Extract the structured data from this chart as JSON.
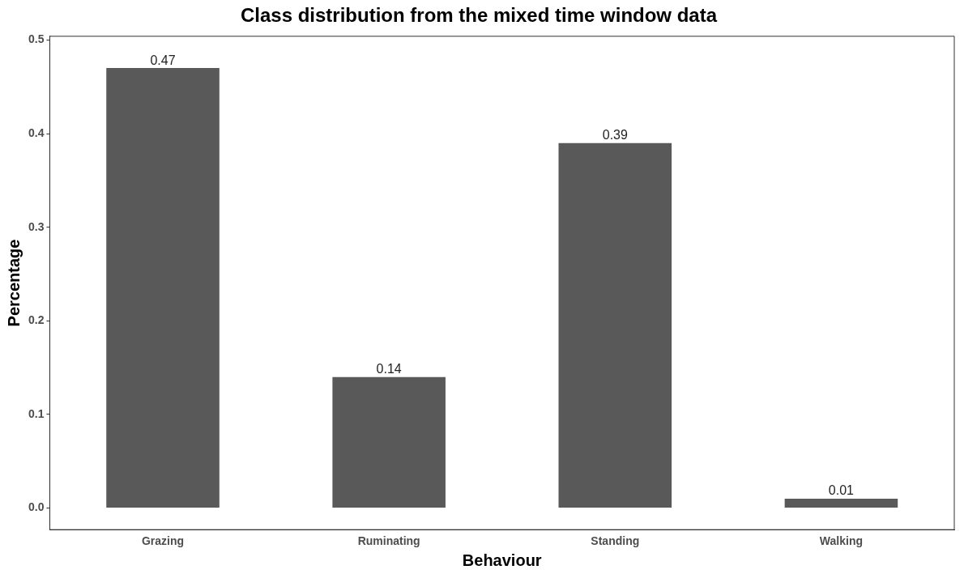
{
  "chart_data": {
    "type": "bar",
    "title": "Class distribution from the mixed time window data",
    "xlabel": "Behaviour",
    "ylabel": "Percentage",
    "categories": [
      "Grazing",
      "Ruminating",
      "Standing",
      "Walking"
    ],
    "values": [
      0.47,
      0.14,
      0.39,
      0.01
    ],
    "color": "#595959",
    "ylim": [
      -0.023,
      0.504
    ],
    "yticks": [
      {
        "value": 0,
        "label": "0.0"
      },
      0.1,
      0.2,
      0.3,
      0.4,
      0.5
    ],
    "data_labels": true,
    "grid": false,
    "legend": false
  }
}
